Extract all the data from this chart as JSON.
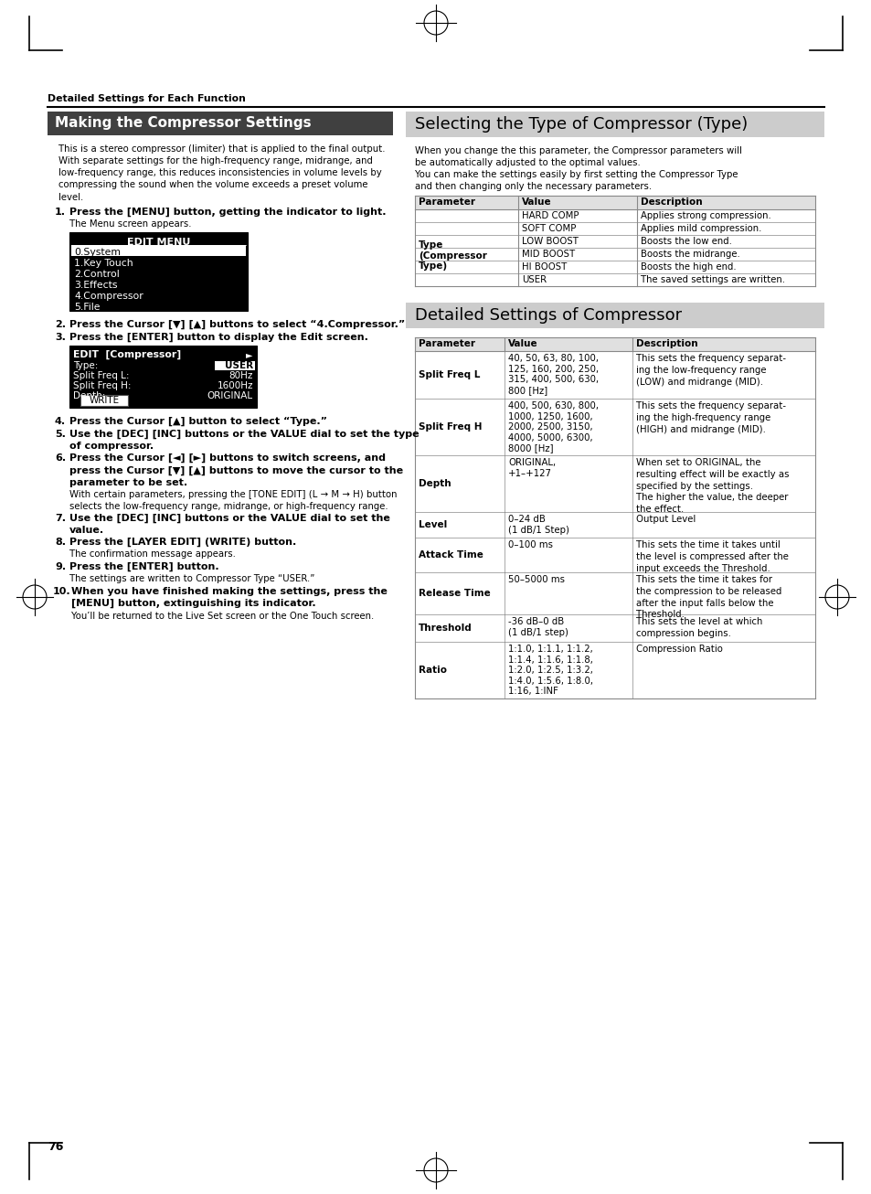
{
  "page_bg": "#ffffff",
  "header_text": "Detailed Settings for Each Function",
  "page_number": "76",
  "left_section_title": "Making the Compressor Settings",
  "left_title_bg": "#404040",
  "left_title_color": "#ffffff",
  "right_section_title": "Selecting the Type of Compressor (Type)",
  "right_title_bg": "#cccccc",
  "right_title_color": "#000000",
  "detail_section_title": "Detailed Settings of Compressor",
  "detail_title_bg": "#cccccc",
  "type_intro1": "When you change the this parameter, the Compressor parameters will\nbe automatically adjusted to the optimal values.",
  "type_intro2": "You can make the settings easily by first setting the Compressor Type\nand then changing only the necessary parameters.",
  "type_table_headers": [
    "Parameter",
    "Value",
    "Description"
  ],
  "type_table_rows": [
    [
      "HARD COMP",
      "Applies strong compression."
    ],
    [
      "SOFT COMP",
      "Applies mild compression."
    ],
    [
      "LOW BOOST",
      "Boosts the low end."
    ],
    [
      "MID BOOST",
      "Boosts the midrange."
    ],
    [
      "HI BOOST",
      "Boosts the high end."
    ],
    [
      "USER",
      "The saved settings are written."
    ]
  ],
  "detail_table_headers": [
    "Parameter",
    "Value",
    "Description"
  ],
  "detail_table_rows": [
    [
      "Split Freq L",
      "40, 50, 63, 80, 100,\n125, 160, 200, 250,\n315, 400, 500, 630,\n800 [Hz]",
      "This sets the frequency separat-\ning the low-frequency range\n(LOW) and midrange (MID)."
    ],
    [
      "Split Freq H",
      "400, 500, 630, 800,\n1000, 1250, 1600,\n2000, 2500, 3150,\n4000, 5000, 6300,\n8000 [Hz]",
      "This sets the frequency separat-\ning the high-frequency range\n(HIGH) and midrange (MID)."
    ],
    [
      "Depth",
      "ORIGINAL,\n+1–+127",
      "When set to ORIGINAL, the\nresulting effect will be exactly as\nspecified by the settings.\nThe higher the value, the deeper\nthe effect."
    ],
    [
      "Level",
      "0–24 dB\n(1 dB/1 Step)",
      "Output Level"
    ],
    [
      "Attack Time",
      "0–100 ms",
      "This sets the time it takes until\nthe level is compressed after the\ninput exceeds the Threshold."
    ],
    [
      "Release Time",
      "50–5000 ms",
      "This sets the time it takes for\nthe compression to be released\nafter the input falls below the\nThreshold."
    ],
    [
      "Threshold",
      "-36 dB–0 dB\n(1 dB/1 step)",
      "This sets the level at which\ncompression begins."
    ],
    [
      "Ratio",
      "1:1.0, 1:1.1, 1:1.2,\n1:1.4, 1:1.6, 1:1.8,\n1:2.0, 1:2.5, 1:3.2,\n1:4.0, 1:5.6, 1:8.0,\n1:16, 1:INF",
      "Compression Ratio"
    ]
  ],
  "table_line_color": "#888888",
  "table_header_bg": "#e0e0e0"
}
